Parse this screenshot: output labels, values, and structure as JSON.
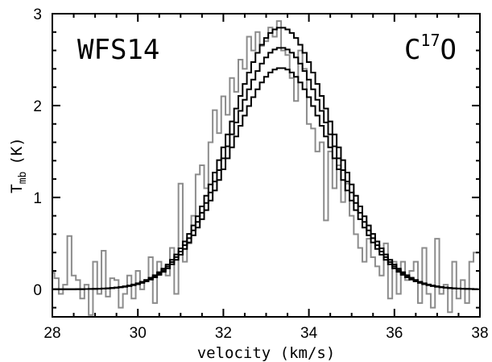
{
  "chart_data": {
    "type": "line",
    "style": "step histogram",
    "xlabel": "velocity (km/s)",
    "ylabel": {
      "main": "T",
      "sub": "mb",
      "unit": "(K)"
    },
    "xlim": [
      28,
      38
    ],
    "ylim": [
      -0.3,
      3.0
    ],
    "x_ticks": [
      "28",
      "30",
      "32",
      "34",
      "36",
      "38"
    ],
    "y_ticks": [
      "0",
      "1",
      "2",
      "3"
    ],
    "annotations": {
      "source": "WFS14",
      "molecule": {
        "base": "C",
        "sup": "17",
        "tail": "O"
      }
    },
    "colors": {
      "observed": "#8c8c8c",
      "models": "#000000"
    },
    "bin_width": 0.1,
    "x": [
      28.0,
      28.1,
      28.2,
      28.3,
      28.4,
      28.5,
      28.6,
      28.7,
      28.8,
      28.9,
      29.0,
      29.1,
      29.2,
      29.3,
      29.4,
      29.5,
      29.6,
      29.7,
      29.8,
      29.9,
      30.0,
      30.1,
      30.2,
      30.3,
      30.4,
      30.5,
      30.6,
      30.7,
      30.8,
      30.9,
      31.0,
      31.1,
      31.2,
      31.3,
      31.4,
      31.5,
      31.6,
      31.7,
      31.8,
      31.9,
      32.0,
      32.1,
      32.2,
      32.3,
      32.4,
      32.5,
      32.6,
      32.7,
      32.8,
      32.9,
      33.0,
      33.1,
      33.2,
      33.3,
      33.4,
      33.5,
      33.6,
      33.7,
      33.8,
      33.9,
      34.0,
      34.1,
      34.2,
      34.3,
      34.4,
      34.5,
      34.6,
      34.7,
      34.8,
      34.9,
      35.0,
      35.1,
      35.2,
      35.3,
      35.4,
      35.5,
      35.6,
      35.7,
      35.8,
      35.9,
      36.0,
      36.1,
      36.2,
      36.3,
      36.4,
      36.5,
      36.6,
      36.7,
      36.8,
      36.9,
      37.0,
      37.1,
      37.2,
      37.3,
      37.4,
      37.5,
      37.6,
      37.7,
      37.8,
      37.9
    ],
    "series": [
      {
        "role": "observed",
        "values": [
          0.18,
          0.12,
          -0.05,
          0.05,
          0.58,
          0.15,
          0.1,
          -0.1,
          0.05,
          -0.28,
          0.3,
          -0.05,
          0.42,
          -0.08,
          0.12,
          0.1,
          -0.2,
          -0.05,
          0.15,
          -0.1,
          0.2,
          0.0,
          0.1,
          0.35,
          -0.15,
          0.3,
          0.2,
          0.15,
          0.45,
          -0.05,
          1.15,
          0.3,
          0.5,
          0.8,
          1.25,
          1.35,
          1.1,
          1.6,
          1.95,
          1.7,
          2.1,
          1.9,
          2.3,
          2.15,
          2.5,
          2.4,
          2.75,
          2.6,
          2.8,
          2.65,
          2.7,
          2.85,
          2.75,
          2.92,
          2.6,
          2.55,
          2.3,
          2.05,
          2.6,
          2.4,
          1.8,
          1.75,
          1.5,
          1.6,
          0.75,
          1.5,
          1.1,
          1.35,
          0.95,
          1.15,
          0.8,
          0.6,
          0.45,
          0.3,
          0.55,
          0.35,
          0.25,
          0.15,
          0.5,
          -0.1,
          0.3,
          -0.05,
          0.3,
          0.1,
          0.2,
          0.3,
          -0.15,
          0.45,
          -0.05,
          -0.2,
          0.55,
          -0.05,
          0.05,
          -0.25,
          0.3,
          -0.1,
          0.1,
          -0.15,
          0.3,
          0.4
        ]
      },
      {
        "role": "model",
        "amplitude": 2.85,
        "center": 33.35,
        "sigma": 1.22
      },
      {
        "role": "model",
        "amplitude": 2.63,
        "center": 33.35,
        "sigma": 1.22
      },
      {
        "role": "model",
        "amplitude": 2.41,
        "center": 33.35,
        "sigma": 1.22
      }
    ]
  }
}
